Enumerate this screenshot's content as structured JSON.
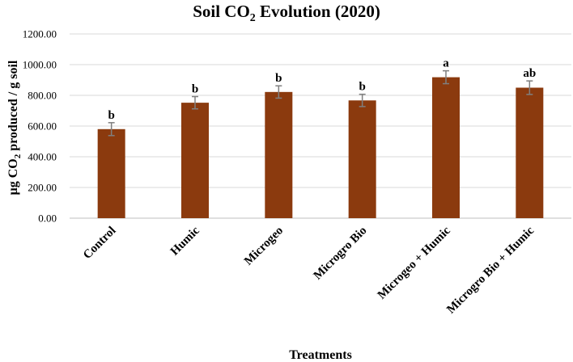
{
  "chart_data": {
    "type": "bar",
    "title": "Soil CO",
    "title_sub": "2",
    "title_tail": " Evolution (2020)",
    "xlabel": "Treatments",
    "ylabel_pre": "μg CO",
    "ylabel_sub": "2",
    "ylabel_post": " produced / g soil",
    "ylim": [
      0,
      1200
    ],
    "yticks": [
      "0.00",
      "200.00",
      "400.00",
      "600.00",
      "800.00",
      "1000.00",
      "1200.00"
    ],
    "ytick_values": [
      0,
      200,
      400,
      600,
      800,
      1000,
      1200
    ],
    "categories": [
      "Control",
      "Humic",
      "Microgeo",
      "Microgro Bio",
      "Microgeo + Humic",
      "Microgro Bio + Humic"
    ],
    "values": [
      580,
      752,
      822,
      767,
      918,
      850
    ],
    "errors": [
      42,
      40,
      40,
      40,
      42,
      44
    ],
    "significance": [
      "b",
      "b",
      "b",
      "b",
      "a",
      "ab"
    ],
    "grid": true,
    "bar_color": "#8B3A0E",
    "error_color": "#7f7f7f"
  }
}
